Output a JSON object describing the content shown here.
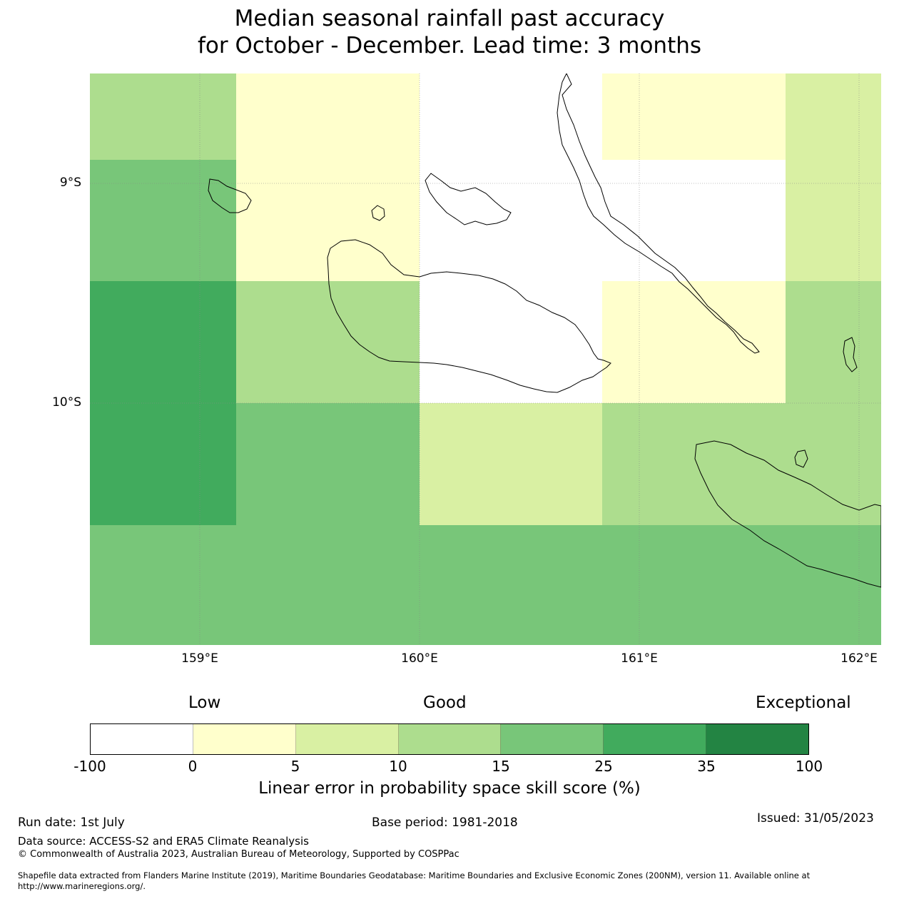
{
  "title": {
    "line1": "Median seasonal rainfall past accuracy",
    "line2": "for October - December. Lead time: 3 months"
  },
  "map": {
    "lat_labels": [
      "9°S",
      "10°S"
    ],
    "lon_labels": [
      "159°E",
      "160°E",
      "161°E",
      "162°E"
    ],
    "grid": [
      [
        "10-15",
        "0-5",
        "-100-0",
        "0-5",
        "5-10"
      ],
      [
        "15-25",
        "0-5",
        "-100-0",
        "-100-0",
        "5-10"
      ],
      [
        "25-35",
        "10-15",
        "-100-0",
        "0-5",
        "10-15"
      ],
      [
        "25-35",
        "15-25",
        "5-10",
        "10-15",
        "10-15"
      ],
      [
        "15-25",
        "15-25",
        "15-25",
        "15-25",
        "15-25"
      ]
    ]
  },
  "legend": {
    "categories": [
      "Low",
      "Good",
      "Exceptional"
    ],
    "colors": [
      "#ffffff",
      "#ffffcc",
      "#d9f0a3",
      "#addd8e",
      "#78c679",
      "#41ab5d",
      "#238443"
    ],
    "ticks": [
      "-100",
      "0",
      "5",
      "10",
      "15",
      "25",
      "35",
      "100"
    ],
    "label": "Linear error in probability space skill score (%)"
  },
  "footer": {
    "run_date": "Run date: 1st July",
    "base_period": "Base period: 1981-2018",
    "issued": "Issued: 31/05/2023",
    "data_source": "Data source: ACCESS-S2 and ERA5 Climate Reanalysis",
    "copyright": "© Commonwealth of Australia 2023, Australian Bureau of Meteorology, Supported by COSPPac",
    "shapefile": "Shapefile data extracted from Flanders Marine Institute (2019), Maritime Boundaries Geodatabase: Maritime Boundaries and Exclusive Economic Zones (200NM), version 11. Available online at http://www.marineregions.org/."
  }
}
